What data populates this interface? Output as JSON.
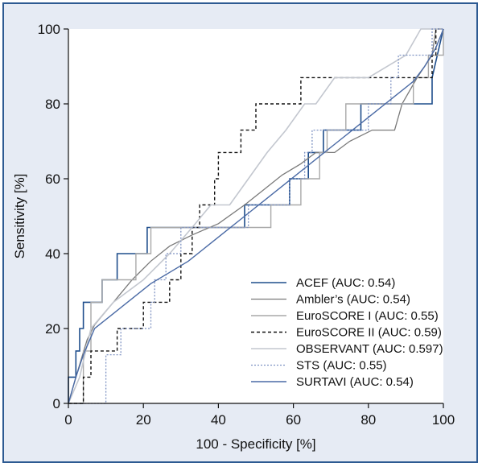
{
  "chart_data": {
    "type": "line",
    "title": "",
    "xlabel": "100 - Specificity [%]",
    "ylabel": "Sensitivity [%]",
    "xlim": [
      0,
      100
    ],
    "ylim": [
      0,
      100
    ],
    "xticks": [
      0,
      20,
      40,
      60,
      80,
      100
    ],
    "yticks": [
      0,
      20,
      40,
      60,
      80,
      100
    ],
    "grid": false,
    "legend_position": "bottom-right",
    "series": [
      {
        "name": "ACEF (AUC: 0.54)",
        "color": "#1f4e8c",
        "dash": "solid",
        "width": 1.6,
        "points": [
          [
            0,
            0
          ],
          [
            0,
            7
          ],
          [
            2,
            7
          ],
          [
            2,
            14
          ],
          [
            3,
            14
          ],
          [
            3,
            20
          ],
          [
            4,
            20
          ],
          [
            4,
            27
          ],
          [
            9,
            27
          ],
          [
            9,
            33
          ],
          [
            13,
            33
          ],
          [
            13,
            40
          ],
          [
            21,
            40
          ],
          [
            21,
            47
          ],
          [
            47,
            47
          ],
          [
            47,
            53
          ],
          [
            59,
            53
          ],
          [
            59,
            60
          ],
          [
            64,
            60
          ],
          [
            64,
            67
          ],
          [
            68,
            67
          ],
          [
            68,
            73
          ],
          [
            78,
            73
          ],
          [
            78,
            80
          ],
          [
            97,
            80
          ],
          [
            97,
            87
          ],
          [
            100,
            100
          ]
        ]
      },
      {
        "name": "Ambler’s (AUC: 0.54)",
        "color": "#7a7a7a",
        "dash": "solid",
        "width": 1.3,
        "points": [
          [
            0,
            0
          ],
          [
            2,
            7
          ],
          [
            5,
            17
          ],
          [
            7,
            21
          ],
          [
            12,
            27
          ],
          [
            17,
            33
          ],
          [
            22,
            38
          ],
          [
            27,
            42
          ],
          [
            33,
            45
          ],
          [
            40,
            48
          ],
          [
            47,
            53
          ],
          [
            52,
            57
          ],
          [
            57,
            61
          ],
          [
            62,
            64
          ],
          [
            66,
            67
          ],
          [
            71,
            67
          ],
          [
            75,
            70
          ],
          [
            81,
            73
          ],
          [
            87,
            73
          ],
          [
            89,
            80
          ],
          [
            93,
            87
          ],
          [
            97,
            93
          ],
          [
            98,
            100
          ],
          [
            100,
            100
          ]
        ]
      },
      {
        "name": "EuroSCORE I (AUC: 0.55)",
        "color": "#a9a9a9",
        "dash": "solid",
        "width": 1.4,
        "points": [
          [
            0,
            0
          ],
          [
            4,
            0
          ],
          [
            4,
            14
          ],
          [
            6,
            14
          ],
          [
            6,
            27
          ],
          [
            9,
            27
          ],
          [
            9,
            33
          ],
          [
            18,
            33
          ],
          [
            18,
            40
          ],
          [
            22,
            40
          ],
          [
            22,
            47
          ],
          [
            54,
            47
          ],
          [
            54,
            53
          ],
          [
            62,
            53
          ],
          [
            62,
            60
          ],
          [
            67,
            60
          ],
          [
            67,
            67
          ],
          [
            69,
            67
          ],
          [
            69,
            73
          ],
          [
            74,
            73
          ],
          [
            74,
            80
          ],
          [
            92,
            80
          ],
          [
            92,
            87
          ],
          [
            96,
            87
          ],
          [
            96,
            93
          ],
          [
            100,
            93
          ],
          [
            100,
            100
          ]
        ]
      },
      {
        "name": "EuroSCORE II (AUC: 0.59)",
        "color": "#111111",
        "dash": "4,3",
        "width": 1.4,
        "points": [
          [
            0,
            0
          ],
          [
            4,
            0
          ],
          [
            4,
            7
          ],
          [
            6,
            7
          ],
          [
            6,
            14
          ],
          [
            13,
            14
          ],
          [
            13,
            20
          ],
          [
            20,
            20
          ],
          [
            20,
            27
          ],
          [
            27,
            27
          ],
          [
            27,
            33
          ],
          [
            30,
            33
          ],
          [
            30,
            40
          ],
          [
            33,
            40
          ],
          [
            33,
            47
          ],
          [
            35,
            47
          ],
          [
            35,
            53
          ],
          [
            39,
            53
          ],
          [
            39,
            60
          ],
          [
            40,
            60
          ],
          [
            40,
            67
          ],
          [
            46,
            67
          ],
          [
            46,
            73
          ],
          [
            50,
            73
          ],
          [
            50,
            80
          ],
          [
            62,
            80
          ],
          [
            62,
            87
          ],
          [
            97,
            87
          ],
          [
            97,
            93
          ],
          [
            98,
            93
          ],
          [
            98,
            100
          ],
          [
            100,
            100
          ]
        ]
      },
      {
        "name": "OBSERVANT (AUC: 0.597)",
        "color": "#c3c7cf",
        "dash": "solid",
        "width": 1.6,
        "points": [
          [
            0,
            0
          ],
          [
            3,
            7
          ],
          [
            6,
            20
          ],
          [
            12,
            27
          ],
          [
            20,
            33
          ],
          [
            27,
            40
          ],
          [
            33,
            47
          ],
          [
            38,
            53
          ],
          [
            43,
            53
          ],
          [
            48,
            60
          ],
          [
            53,
            67
          ],
          [
            58,
            73
          ],
          [
            63,
            80
          ],
          [
            66,
            80
          ],
          [
            71,
            87
          ],
          [
            80,
            87
          ],
          [
            90,
            93
          ],
          [
            94,
            100
          ],
          [
            100,
            100
          ]
        ]
      },
      {
        "name": "STS (AUC: 0.55)",
        "color": "#7f93c3",
        "dash": "2,2",
        "width": 1.3,
        "points": [
          [
            0,
            0
          ],
          [
            10,
            0
          ],
          [
            10,
            13
          ],
          [
            14,
            13
          ],
          [
            14,
            20
          ],
          [
            22,
            20
          ],
          [
            22,
            27
          ],
          [
            23,
            27
          ],
          [
            23,
            33
          ],
          [
            26,
            33
          ],
          [
            26,
            40
          ],
          [
            30,
            40
          ],
          [
            30,
            47
          ],
          [
            48,
            47
          ],
          [
            48,
            53
          ],
          [
            59,
            53
          ],
          [
            59,
            60
          ],
          [
            63,
            60
          ],
          [
            63,
            67
          ],
          [
            65,
            67
          ],
          [
            65,
            73
          ],
          [
            80,
            73
          ],
          [
            80,
            80
          ],
          [
            86,
            80
          ],
          [
            86,
            87
          ],
          [
            88,
            87
          ],
          [
            88,
            93
          ],
          [
            97,
            93
          ],
          [
            97,
            100
          ],
          [
            100,
            100
          ]
        ]
      },
      {
        "name": "SURTAVI (AUC: 0.54)",
        "color": "#4a6aa5",
        "dash": "solid",
        "width": 1.4,
        "points": [
          [
            0,
            0
          ],
          [
            2,
            7
          ],
          [
            4,
            13
          ],
          [
            7,
            20
          ],
          [
            12,
            24
          ],
          [
            17,
            28
          ],
          [
            22,
            32
          ],
          [
            27,
            35
          ],
          [
            32,
            38
          ],
          [
            37,
            42
          ],
          [
            42,
            46
          ],
          [
            47,
            50
          ],
          [
            52,
            54
          ],
          [
            57,
            58
          ],
          [
            62,
            62
          ],
          [
            67,
            66
          ],
          [
            72,
            70
          ],
          [
            77,
            74
          ],
          [
            82,
            78
          ],
          [
            87,
            82
          ],
          [
            92,
            86
          ],
          [
            95,
            90
          ],
          [
            98,
            95
          ],
          [
            100,
            100
          ]
        ]
      }
    ]
  }
}
